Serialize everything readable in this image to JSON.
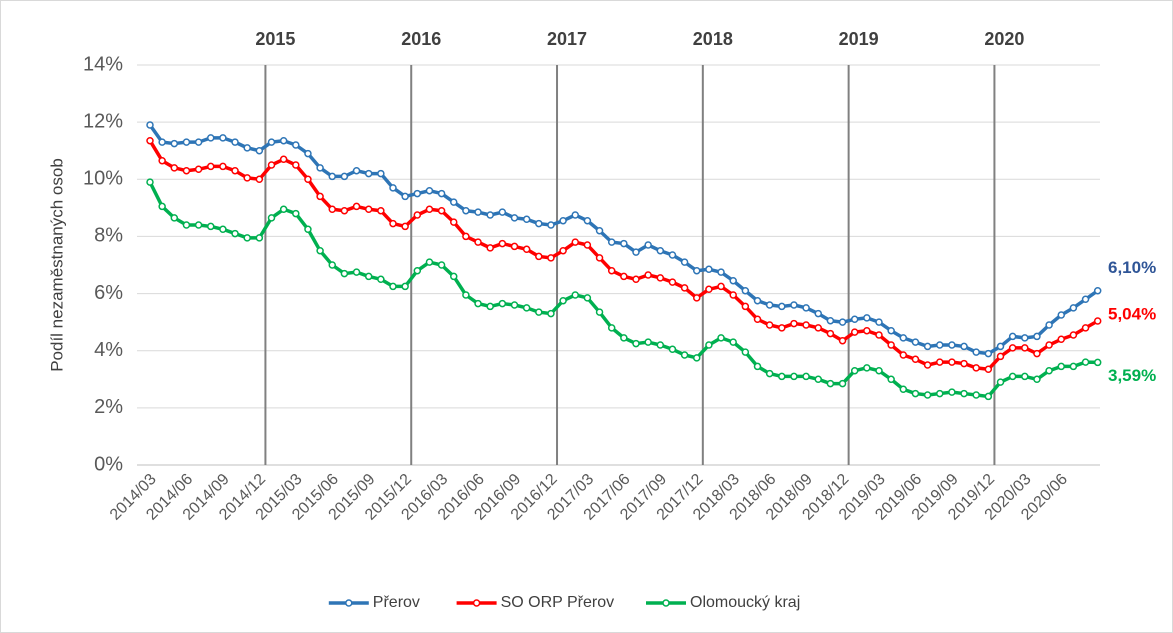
{
  "chart_data": {
    "type": "line",
    "y_label": "Podíl nezaměstnaných osob",
    "categories": [
      "2014/03",
      null,
      null,
      "2014/06",
      null,
      null,
      "2014/09",
      null,
      null,
      "2014/12",
      null,
      null,
      "2015/03",
      null,
      null,
      "2015/06",
      null,
      null,
      "2015/09",
      null,
      null,
      "2015/12",
      null,
      null,
      "2016/03",
      null,
      null,
      "2016/06",
      null,
      null,
      "2016/09",
      null,
      null,
      "2016/12",
      null,
      null,
      "2017/03",
      null,
      null,
      "2017/06",
      null,
      null,
      "2017/09",
      null,
      null,
      "2017/12",
      null,
      null,
      "2018/03",
      null,
      null,
      "2018/06",
      null,
      null,
      "2018/09",
      null,
      null,
      "2018/12",
      null,
      null,
      "2019/03",
      null,
      null,
      "2019/06",
      null,
      null,
      "2019/09",
      null,
      null,
      "2019/12",
      null,
      null,
      "2020/03",
      null,
      null,
      "2020/06",
      null,
      null,
      null
    ],
    "series": [
      {
        "name": "Přerov",
        "color": "#2e75b6",
        "label_color": "#2f5597",
        "end_label": "6,10%",
        "values": [
          11.9,
          11.3,
          11.25,
          11.3,
          11.3,
          11.45,
          11.45,
          11.3,
          11.1,
          11.0,
          11.3,
          11.35,
          11.2,
          10.9,
          10.4,
          10.1,
          10.1,
          10.3,
          10.2,
          10.2,
          9.7,
          9.4,
          9.5,
          9.6,
          9.5,
          9.2,
          8.9,
          8.85,
          8.75,
          8.85,
          8.65,
          8.6,
          8.45,
          8.4,
          8.55,
          8.75,
          8.55,
          8.2,
          7.8,
          7.75,
          7.45,
          7.7,
          7.5,
          7.35,
          7.1,
          6.8,
          6.85,
          6.75,
          6.45,
          6.1,
          5.75,
          5.6,
          5.55,
          5.6,
          5.5,
          5.3,
          5.05,
          5.0,
          5.1,
          5.15,
          5.0,
          4.7,
          4.45,
          4.3,
          4.15,
          4.2,
          4.2,
          4.15,
          3.95,
          3.9,
          4.15,
          4.5,
          4.45,
          4.5,
          4.9,
          5.25,
          5.5,
          5.8,
          6.1
        ]
      },
      {
        "name": "SO ORP Přerov",
        "color": "#ff0000",
        "label_color": "#ff0000",
        "end_label": "5,04%",
        "values": [
          11.35,
          10.65,
          10.4,
          10.3,
          10.35,
          10.45,
          10.45,
          10.3,
          10.05,
          10.0,
          10.5,
          10.7,
          10.5,
          10.0,
          9.4,
          8.95,
          8.9,
          9.05,
          8.95,
          8.9,
          8.45,
          8.35,
          8.75,
          8.95,
          8.9,
          8.5,
          8.0,
          7.8,
          7.6,
          7.75,
          7.65,
          7.55,
          7.3,
          7.25,
          7.5,
          7.8,
          7.7,
          7.25,
          6.8,
          6.6,
          6.5,
          6.65,
          6.55,
          6.4,
          6.2,
          5.85,
          6.15,
          6.25,
          5.95,
          5.55,
          5.1,
          4.9,
          4.8,
          4.95,
          4.9,
          4.8,
          4.6,
          4.35,
          4.65,
          4.7,
          4.55,
          4.2,
          3.85,
          3.7,
          3.5,
          3.6,
          3.6,
          3.55,
          3.4,
          3.35,
          3.8,
          4.1,
          4.1,
          3.9,
          4.2,
          4.4,
          4.55,
          4.8,
          5.04
        ]
      },
      {
        "name": "Olomoucký kraj",
        "color": "#00b050",
        "label_color": "#00b050",
        "end_label": "3,59%",
        "values": [
          9.9,
          9.05,
          8.65,
          8.4,
          8.4,
          8.35,
          8.25,
          8.1,
          7.95,
          7.95,
          8.65,
          8.95,
          8.8,
          8.25,
          7.5,
          7.0,
          6.7,
          6.75,
          6.6,
          6.5,
          6.25,
          6.25,
          6.8,
          7.1,
          7.0,
          6.6,
          5.95,
          5.65,
          5.55,
          5.65,
          5.6,
          5.5,
          5.35,
          5.3,
          5.75,
          5.95,
          5.85,
          5.35,
          4.8,
          4.45,
          4.25,
          4.3,
          4.2,
          4.05,
          3.85,
          3.75,
          4.2,
          4.45,
          4.3,
          3.95,
          3.45,
          3.2,
          3.1,
          3.1,
          3.1,
          3.0,
          2.85,
          2.85,
          3.3,
          3.4,
          3.3,
          3.0,
          2.65,
          2.5,
          2.45,
          2.5,
          2.55,
          2.5,
          2.45,
          2.4,
          2.9,
          3.1,
          3.1,
          3.0,
          3.3,
          3.45,
          3.45,
          3.6,
          3.59
        ]
      }
    ],
    "year_labels": [
      "2015",
      "2016",
      "2017",
      "2018",
      "2019",
      "2020"
    ],
    "ylim": [
      0,
      14
    ],
    "yticks": [
      {
        "value": 0,
        "label": "0%"
      },
      {
        "value": 2,
        "label": "2%"
      },
      {
        "value": 4,
        "label": "4%"
      },
      {
        "value": 6,
        "label": "6%"
      },
      {
        "value": 8,
        "label": "8%"
      },
      {
        "value": 10,
        "label": "10%"
      },
      {
        "value": 12,
        "label": "12%"
      },
      {
        "value": 14,
        "label": "14%"
      }
    ],
    "grid": true,
    "legend": "bottom"
  }
}
